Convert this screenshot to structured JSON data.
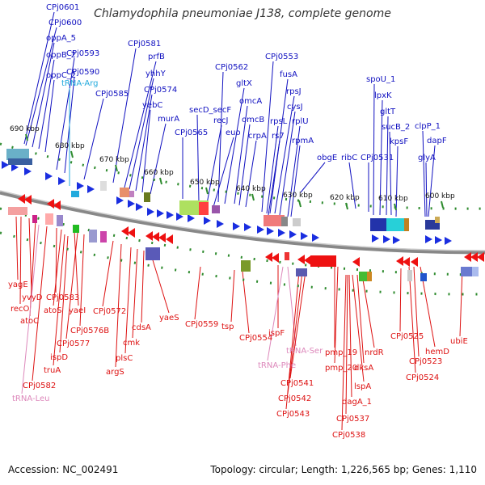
{
  "title": "Chlamydophila pneumoniae J138, complete genome",
  "footer": {
    "accession": "Accession: NC_002491",
    "topology": "Topology: circular; Length: 1,226,565 bp; Genes: 1,110"
  },
  "colors": {
    "forward_label": "#1010c0",
    "reverse_label": "#dd1111",
    "forward_trna": "#22aadd",
    "reverse_trna": "#dd88bb",
    "backbone": "#888888",
    "tick": "#2e8b2e"
  },
  "kbp_labels": [
    "690 kbp",
    "680 kbp",
    "670 kbp",
    "660 kbp",
    "650 kbp",
    "640 kbp",
    "630 kbp",
    "620 kbp",
    "610 kbp",
    "600 kbp"
  ],
  "forward_labels": [
    "CPj0601",
    "CPj0600",
    "oppA_5",
    "oppB_2",
    "oppC_2",
    "CPj0593",
    "CPj0590",
    "tRNA-Arg",
    "CPj0585",
    "CPj0581",
    "prfB",
    "yhhY",
    "CPj0574",
    "yebC",
    "murA",
    "CPj0565",
    "secD_secF",
    "recJ",
    "euo",
    "CPj0562",
    "gltX",
    "omcA",
    "omcB",
    "crpA",
    "CPj0553",
    "fusA",
    "rpsJ",
    "cysJ",
    "rpsL",
    "rs7",
    "rplU",
    "rpmA",
    "obgE",
    "ribC",
    "CPj0531",
    "spoU_1",
    "lpxK",
    "gltT",
    "sucB_2",
    "kpsF",
    "clpP_1",
    "dapF",
    "glyA"
  ],
  "reverse_labels": [
    "yagE",
    "yvyD",
    "recO",
    "atoC",
    "CPj0583",
    "atoS",
    "yaeI",
    "CPj0577",
    "CPj0576B",
    "ispD",
    "truA",
    "CPj0582",
    "tRNA-Leu",
    "CPj0572",
    "argS",
    "plsC",
    "cmk",
    "cdsA",
    "yaeS",
    "CPj0559",
    "tsp",
    "CPj0554",
    "ispF",
    "tRNA-Ser",
    "tRNA-Phe",
    "pmp_19",
    "pmp_20",
    "CPj0541",
    "CPj0542",
    "CPj0543",
    "nrdR",
    "dksA",
    "lspA",
    "dagA_1",
    "CPj0537",
    "CPj0538",
    "CPj0525",
    "CPj0523",
    "hemD",
    "CPj0524",
    "ubiE"
  ]
}
